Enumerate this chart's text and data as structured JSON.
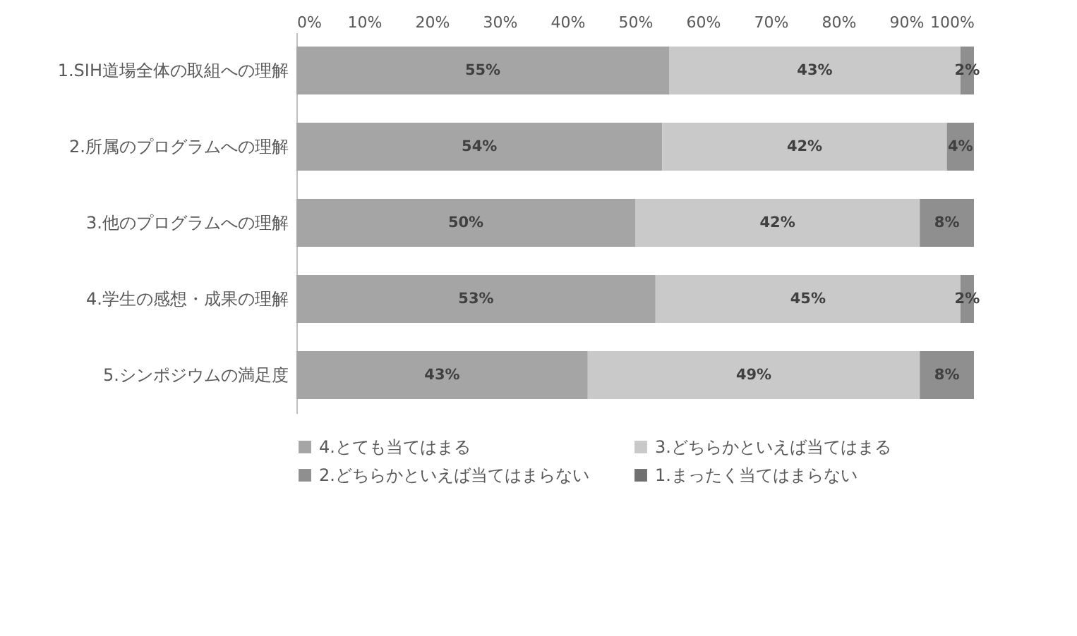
{
  "chart_data": {
    "type": "bar",
    "orientation": "horizontal",
    "stacked": true,
    "categories": [
      "1.SIH道場全体の取組への理解",
      "2.所属のプログラムへの理解",
      "3.他のプログラムへの理解",
      "4.学生の感想・成果の理解",
      "5.シンポジウムの満足度"
    ],
    "series": [
      {
        "name": "4.とても当てはまる",
        "color": "#a5a5a5",
        "values": [
          55,
          54,
          50,
          53,
          43
        ],
        "value_labels": [
          "55%",
          "54%",
          "50%",
          "53%",
          "43%"
        ]
      },
      {
        "name": "3.どちらかといえば当てはまる",
        "color": "#c9c9c9",
        "values": [
          43,
          42,
          42,
          45,
          49
        ],
        "value_labels": [
          "43%",
          "42%",
          "42%",
          "45%",
          "49%"
        ]
      },
      {
        "name": "2.どちらかといえば当てはまらない",
        "color": "#8f8f8f",
        "values": [
          2,
          4,
          8,
          2,
          8
        ],
        "value_labels": [
          "2%",
          "4%",
          "8%",
          "2%",
          "8%"
        ]
      },
      {
        "name": "1.まったく当てはまらない",
        "color": "#707070",
        "values": [
          0,
          0,
          0,
          0,
          0
        ],
        "value_labels": [
          null,
          null,
          null,
          null,
          null
        ]
      }
    ],
    "xlim": [
      0,
      100
    ],
    "xticks": [
      {
        "value": 0,
        "label": "0%"
      },
      {
        "value": 10,
        "label": "10%"
      },
      {
        "value": 20,
        "label": "20%"
      },
      {
        "value": 30,
        "label": "30%"
      },
      {
        "value": 40,
        "label": "40%"
      },
      {
        "value": 50,
        "label": "50%"
      },
      {
        "value": 60,
        "label": "60%"
      },
      {
        "value": 70,
        "label": "70%"
      },
      {
        "value": 80,
        "label": "80%"
      },
      {
        "value": 90,
        "label": "90%"
      },
      {
        "value": 100,
        "label": "100%"
      }
    ],
    "grid": false,
    "legend": "bottom"
  }
}
